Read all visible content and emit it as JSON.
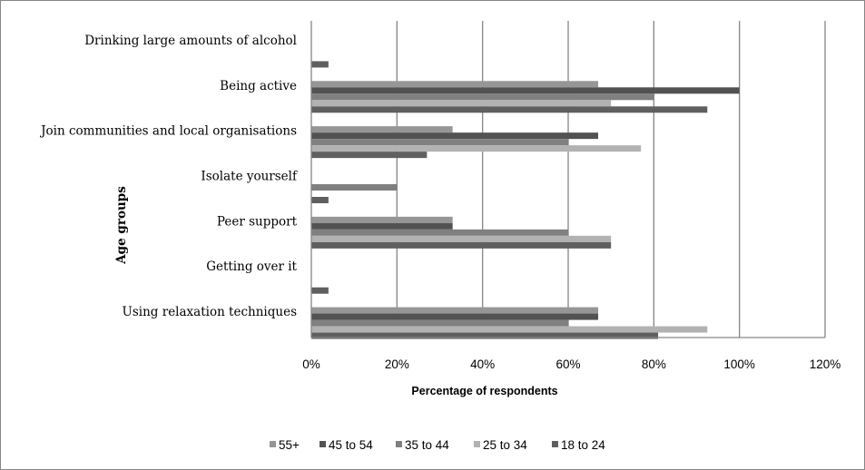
{
  "chart_data": {
    "type": "bar",
    "orientation": "horizontal",
    "title": "",
    "xlabel": "Percentage of respondents",
    "ylabel": "Age groups",
    "xlim": [
      0,
      120
    ],
    "x_ticks": [
      "0%",
      "20%",
      "40%",
      "60%",
      "80%",
      "100%",
      "120%"
    ],
    "x_tick_values": [
      0,
      20,
      40,
      60,
      80,
      100,
      120
    ],
    "grid": "vertical",
    "legend_position": "bottom",
    "categories": [
      "Drinking large amounts of alcohol",
      "Being active",
      "Join communities and local organisations",
      "Isolate yourself",
      "Peer support",
      "Getting over it",
      "Using relaxation techniques"
    ],
    "series": [
      {
        "name": "55+",
        "color": "#969696",
        "values": [
          0,
          67,
          33,
          0,
          33,
          0,
          67
        ]
      },
      {
        "name": "45 to 54",
        "color": "#525252",
        "values": [
          0,
          100,
          67,
          0,
          33,
          0,
          67
        ]
      },
      {
        "name": "35 to 44",
        "color": "#808080",
        "values": [
          0,
          80,
          60,
          20,
          60,
          0,
          60
        ]
      },
      {
        "name": "25 to 34",
        "color": "#b2b2b2",
        "values": [
          0,
          70,
          77,
          0,
          70,
          0,
          92.5
        ]
      },
      {
        "name": "18 to 24",
        "color": "#5f5f5f",
        "values": [
          4,
          92.5,
          27,
          4,
          70,
          4,
          81
        ]
      }
    ]
  }
}
